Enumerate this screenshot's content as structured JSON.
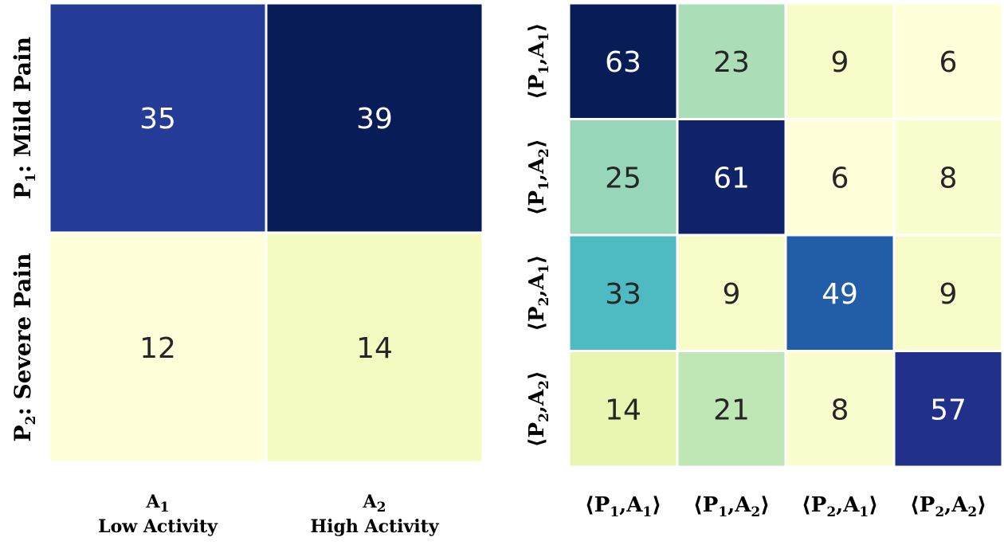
{
  "chart_data": [
    {
      "type": "heatmap",
      "rows": [
        {
          "main": "P",
          "sub": "1",
          "text": ": Mild Pain"
        },
        {
          "main": "P",
          "sub": "2",
          "text": ": Severe Pain"
        }
      ],
      "cols": [
        {
          "main": "A",
          "sub": "1",
          "text": "Low Activity"
        },
        {
          "main": "A",
          "sub": "2",
          "text": "High Activity"
        }
      ],
      "values": [
        [
          35,
          39
        ],
        [
          12,
          14
        ]
      ],
      "colormap": "YlGnBu",
      "colorbar": false
    },
    {
      "type": "heatmap",
      "labels": [
        {
          "p": "1",
          "a": "1"
        },
        {
          "p": "1",
          "a": "2"
        },
        {
          "p": "2",
          "a": "1"
        },
        {
          "p": "2",
          "a": "2"
        }
      ],
      "values": [
        [
          63,
          23,
          9,
          6
        ],
        [
          25,
          61,
          6,
          8
        ],
        [
          33,
          9,
          49,
          9
        ],
        [
          14,
          21,
          8,
          57
        ]
      ],
      "colormap": "YlGnBu",
      "colorbar": false
    }
  ],
  "symbols": {
    "langle": "⟨",
    "rangle": "⟩",
    "comma": ","
  },
  "colors": {
    "scale_stops": [
      "#ffffd9",
      "#edf8b1",
      "#c7e9b4",
      "#7fcdbb",
      "#41b6c4",
      "#1d91c0",
      "#225ea8",
      "#253494",
      "#081d58"
    ],
    "text_dark": "#262626",
    "text_light": "#ffffff",
    "cell_border": "#ffffff"
  }
}
